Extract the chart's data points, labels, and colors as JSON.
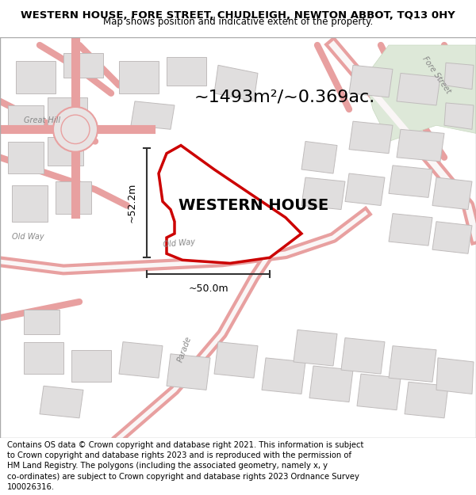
{
  "title_line1": "WESTERN HOUSE, FORE STREET, CHUDLEIGH, NEWTON ABBOT, TQ13 0HY",
  "title_line2": "Map shows position and indicative extent of the property.",
  "property_label": "WESTERN HOUSE",
  "area_label": "~1493m²/~0.369ac.",
  "dim_vertical": "~52.2m",
  "dim_horizontal": "~50.0m",
  "footer_lines": [
    "Contains OS data © Crown copyright and database right 2021. This information is subject",
    "to Crown copyright and database rights 2023 and is reproduced with the permission of",
    "HM Land Registry. The polygons (including the associated geometry, namely x, y",
    "co-ordinates) are subject to Crown copyright and database rights 2023 Ordnance Survey",
    "100026316."
  ],
  "map_bg": "#f0eeee",
  "property_fill": "#ffffff",
  "property_edge": "#cc0000",
  "road_color": "#e8a0a0",
  "building_color": "#e0dede",
  "building_edge": "#c0bcbc",
  "title_fontsize": 9.5,
  "subtitle_fontsize": 8.5,
  "label_fontsize": 14,
  "area_fontsize": 16,
  "footer_fontsize": 7.2,
  "road_label_color": "#888888",
  "dim_color": "#333333"
}
